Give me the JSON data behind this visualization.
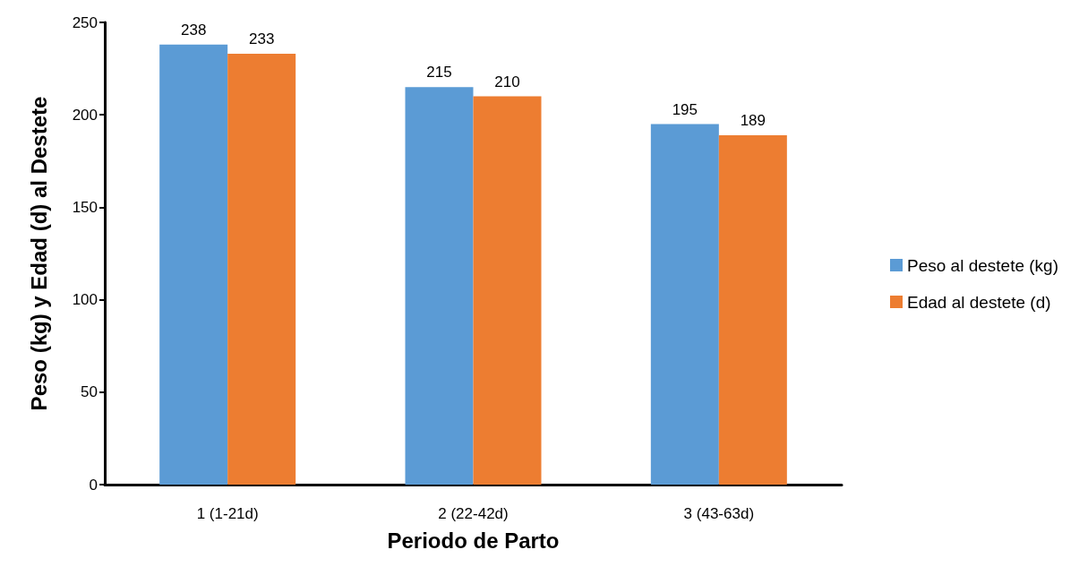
{
  "chart_data": {
    "type": "bar",
    "xlabel": "Periodo de Parto",
    "ylabel": "Peso (kg) y Edad (d) al Destete",
    "categories": [
      "1 (1-21d)",
      "2 (22-42d)",
      "3 (43-63d)"
    ],
    "series": [
      {
        "name": "Peso al destete (kg)",
        "color": "#5b9bd5",
        "values": [
          238,
          215,
          195
        ]
      },
      {
        "name": "Edad al destete (d)",
        "color": "#ed7d31",
        "values": [
          233,
          210,
          189
        ]
      }
    ],
    "ylim": [
      0,
      250
    ],
    "yticks": [
      0,
      50,
      100,
      150,
      200,
      250
    ],
    "grid": false,
    "legend": "right",
    "data_labels": true
  }
}
